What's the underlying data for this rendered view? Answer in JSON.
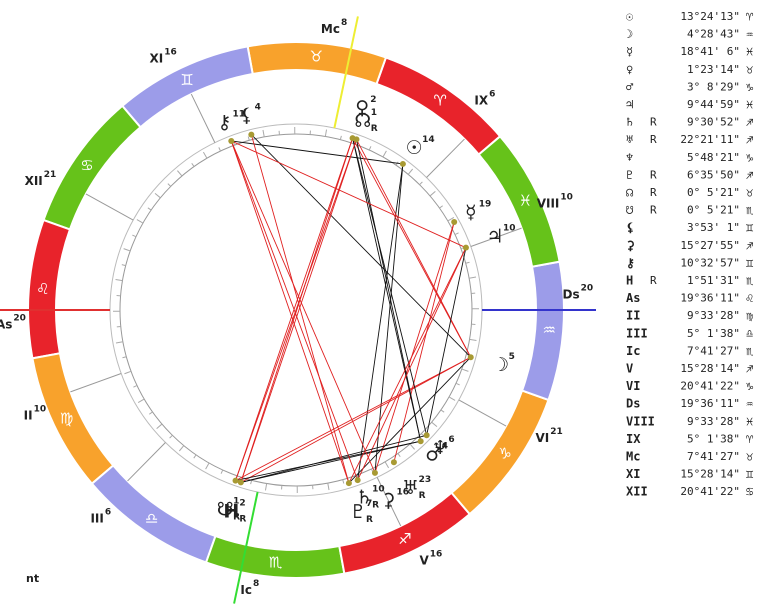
{
  "wheel": {
    "signs": [
      "♈",
      "♉",
      "♊",
      "♋",
      "♌",
      "♍",
      "♎",
      "♏",
      "♐",
      "♑",
      "♒",
      "♓"
    ],
    "planets": [
      {
        "glyph": "☉",
        "deg": "14"
      },
      {
        "glyph": "☽",
        "deg": "5"
      },
      {
        "glyph": "☿",
        "deg": "19"
      },
      {
        "glyph": "♀",
        "deg": "2"
      },
      {
        "glyph": "♂",
        "deg": "4"
      },
      {
        "glyph": "♃",
        "deg": "10"
      },
      {
        "glyph": "♄",
        "deg": "10",
        "retro": "R"
      },
      {
        "glyph": "♅",
        "deg": "23",
        "retro": "R"
      },
      {
        "glyph": "♆",
        "deg": "6"
      },
      {
        "glyph": "♇",
        "deg": "7",
        "retro": "R"
      },
      {
        "glyph": "☊",
        "deg": "1",
        "retro": "R"
      },
      {
        "glyph": "☋",
        "deg": "1",
        "retro": "R"
      },
      {
        "glyph": "⚸",
        "deg": "4"
      },
      {
        "glyph": "⚳",
        "deg": "16"
      },
      {
        "glyph": "⚷",
        "deg": "11"
      },
      {
        "glyph": "H",
        "deg": "2",
        "retro": "R"
      }
    ],
    "cusps": [
      {
        "label": "As",
        "deg": "20"
      },
      {
        "label": "II",
        "deg": "10"
      },
      {
        "label": "III",
        "deg": "6"
      },
      {
        "label": "Ic",
        "deg": "8"
      },
      {
        "label": "V",
        "deg": "16"
      },
      {
        "label": "VI",
        "deg": "21"
      },
      {
        "label": "Ds",
        "deg": "20"
      },
      {
        "label": "VIII",
        "deg": "10"
      },
      {
        "label": "IX",
        "deg": "6"
      },
      {
        "label": "Mc",
        "deg": "8"
      },
      {
        "label": "XI",
        "deg": "16"
      },
      {
        "label": "XII",
        "deg": "21"
      }
    ],
    "footer": "nt"
  },
  "table": {
    "rows": [
      {
        "glyph": "☉",
        "position": "13°24'13\"",
        "sign": "♈"
      },
      {
        "glyph": "☽",
        "position": "4°28'43\"",
        "sign": "♒"
      },
      {
        "glyph": "☿",
        "position": "18°41' 6\"",
        "sign": "♓"
      },
      {
        "glyph": "♀",
        "position": "1°23'14\"",
        "sign": "♉"
      },
      {
        "glyph": "♂",
        "position": "3° 8'29\"",
        "sign": "♑"
      },
      {
        "glyph": "♃",
        "position": "9°44'59\"",
        "sign": "♓"
      },
      {
        "glyph": "♄",
        "retro": "R",
        "position": "9°30'52\"",
        "sign": "♐"
      },
      {
        "glyph": "♅",
        "retro": "R",
        "position": "22°21'11\"",
        "sign": "♐"
      },
      {
        "glyph": "♆",
        "position": "5°48'21\"",
        "sign": "♑"
      },
      {
        "glyph": "♇",
        "retro": "R",
        "position": "6°35'50\"",
        "sign": "♐"
      },
      {
        "glyph": "☊",
        "retro": "R",
        "position": "0° 5'21\"",
        "sign": "♉"
      },
      {
        "glyph": "☋",
        "retro": "R",
        "position": "0° 5'21\"",
        "sign": "♏"
      },
      {
        "glyph": "⚸",
        "position": "3°53' 1\"",
        "sign": "♊"
      },
      {
        "glyph": "⚳",
        "position": "15°27'55\"",
        "sign": "♐"
      },
      {
        "glyph": "⚷",
        "position": "10°32'57\"",
        "sign": "♊"
      },
      {
        "glyph": "H",
        "retro": "R",
        "position": "1°51'31\"",
        "sign": "♏"
      },
      {
        "glyph": "As",
        "position": "19°36'11\"",
        "sign": "♌"
      },
      {
        "glyph": "II",
        "position": "9°33'28\"",
        "sign": "♍"
      },
      {
        "glyph": "III",
        "position": "5° 1'38\"",
        "sign": "♎"
      },
      {
        "glyph": "Ic",
        "position": "7°41'27\"",
        "sign": "♏"
      },
      {
        "glyph": "V",
        "position": "15°28'14\"",
        "sign": "♐"
      },
      {
        "glyph": "VI",
        "position": "20°41'22\"",
        "sign": "♑"
      },
      {
        "glyph": "Ds",
        "position": "19°36'11\"",
        "sign": "♒"
      },
      {
        "glyph": "VIII",
        "position": "9°33'28\"",
        "sign": "♓"
      },
      {
        "glyph": "IX",
        "position": "5° 1'38\"",
        "sign": "♈"
      },
      {
        "glyph": "Mc",
        "position": "7°41'27\"",
        "sign": "♉"
      },
      {
        "glyph": "XI",
        "position": "15°28'14\"",
        "sign": "♊"
      },
      {
        "glyph": "XII",
        "position": "20°41'22\"",
        "sign": "♋"
      }
    ]
  }
}
